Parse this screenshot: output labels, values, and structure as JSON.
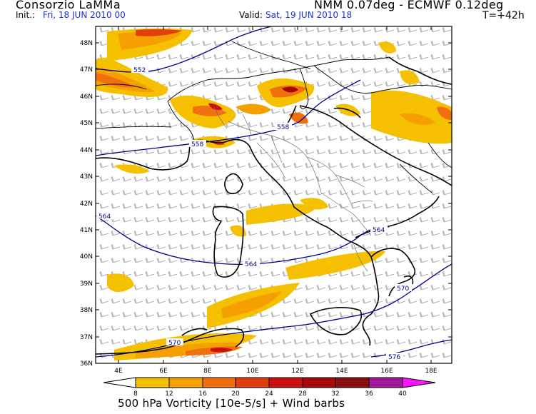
{
  "header": {
    "organization": "Consorzio LaMMa",
    "init_label": "Init.:",
    "init_value": "Fri, 18 JUN 2010  00",
    "valid_label": "Valid:",
    "valid_value": "Sat, 19 JUN 2010  18",
    "model": "NMM 0.07deg - ECMWF 0.12deg",
    "lead_time": "T=+42h"
  },
  "axes": {
    "lat_labels": [
      "48N",
      "47N",
      "46N",
      "45N",
      "44N",
      "43N",
      "42N",
      "41N",
      "40N",
      "39N",
      "38N",
      "37N",
      "36N"
    ],
    "lon_labels": [
      "4E",
      "6E",
      "8E",
      "10E",
      "12E",
      "14E",
      "16E",
      "18E"
    ]
  },
  "contours": {
    "labels": [
      "552",
      "558",
      "558",
      "564",
      "564",
      "564",
      "570",
      "570",
      "576"
    ],
    "color": "#00008b"
  },
  "colorbar": {
    "title": "500 hPa Vorticity [10e-5/s] + Wind barbs",
    "ticks": [
      "8",
      "12",
      "16",
      "20",
      "24",
      "28",
      "32",
      "36",
      "40"
    ],
    "colors": [
      "#ffffff",
      "#f5c000",
      "#f5a000",
      "#f07010",
      "#e04010",
      "#cc1010",
      "#a80808",
      "#881010",
      "#a01898",
      "#ff10ff"
    ]
  }
}
